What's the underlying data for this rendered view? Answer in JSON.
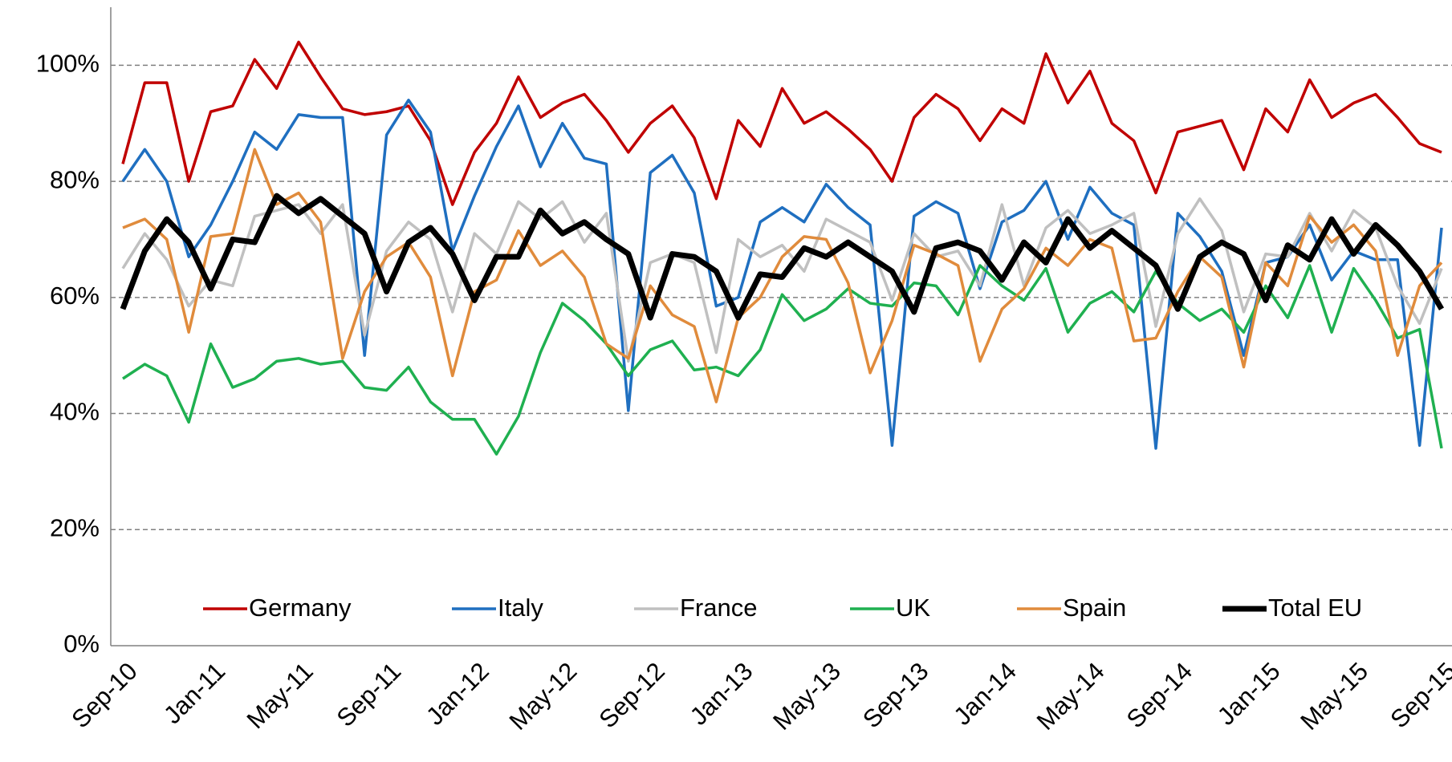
{
  "chart_data": {
    "type": "line",
    "categories": [
      "Sep-10",
      null,
      null,
      null,
      "Jan-11",
      null,
      null,
      null,
      "May-11",
      null,
      null,
      null,
      "Sep-11",
      null,
      null,
      null,
      "Jan-12",
      null,
      null,
      null,
      "May-12",
      null,
      null,
      null,
      "Sep-12",
      null,
      null,
      null,
      "Jan-13",
      null,
      null,
      null,
      "May-13",
      null,
      null,
      null,
      "Sep-13",
      null,
      null,
      null,
      "Jan-14",
      null,
      null,
      null,
      "May-14",
      null,
      null,
      null,
      "Sep-14",
      null,
      null,
      null,
      "Jan-15",
      null,
      null,
      null,
      "May-15",
      null,
      null,
      null,
      "Sep-15"
    ],
    "series": [
      {
        "name": "Germany",
        "color": "#c00000",
        "width": 3.5,
        "values": [
          83,
          97,
          97,
          80,
          92,
          93,
          101,
          96,
          104,
          98,
          92.5,
          91.5,
          92,
          93,
          87,
          76,
          85,
          90,
          98,
          91,
          93.5,
          95,
          90.5,
          85,
          90,
          93,
          87.5,
          77,
          90.5,
          86,
          96,
          90,
          92,
          89,
          85.5,
          80,
          91,
          95,
          92.5,
          87,
          92.5,
          90,
          102,
          93.5,
          99,
          90,
          87,
          78,
          88.5,
          89.5,
          90.5,
          82,
          92.5,
          88.5,
          97.5,
          91,
          93.5,
          95,
          91,
          86.5,
          85
        ]
      },
      {
        "name": "Italy",
        "color": "#1f6fc0",
        "width": 3.5,
        "values": [
          80,
          85.5,
          80,
          67,
          72.5,
          80,
          88.5,
          85.5,
          91.5,
          91,
          91,
          50,
          88,
          94,
          88.5,
          68,
          77.5,
          86,
          93,
          82.5,
          90,
          84,
          83,
          40.5,
          81.5,
          84.5,
          78,
          58.5,
          60,
          73,
          75.5,
          73,
          79.5,
          75.5,
          72.5,
          34.5,
          74,
          76.5,
          74.5,
          61.5,
          73,
          75,
          80,
          70,
          79,
          74.5,
          72.5,
          34,
          74.5,
          70.5,
          64.5,
          50,
          66,
          67,
          72.5,
          63,
          68,
          66.5,
          66.5,
          34.5,
          72
        ]
      },
      {
        "name": "France",
        "color": "#c0c0c0",
        "width": 3.5,
        "values": [
          65,
          71,
          66.5,
          58.5,
          63,
          62,
          74,
          75,
          76,
          71,
          76,
          53.5,
          68,
          73,
          70,
          57.5,
          71,
          67.5,
          76.5,
          73.5,
          76.5,
          69.5,
          74.5,
          49,
          66,
          67.5,
          66,
          50.5,
          70,
          67,
          69,
          64.5,
          73.5,
          71.5,
          69.5,
          59.5,
          71,
          67,
          68,
          62,
          76,
          62,
          72,
          75,
          71,
          72.5,
          74.5,
          55,
          71,
          77,
          71.5,
          57.5,
          67.5,
          67,
          74.5,
          68,
          75,
          72,
          62,
          55.5,
          65
        ]
      },
      {
        "name": "UK",
        "color": "#1fb050",
        "width": 3.5,
        "values": [
          46,
          48.5,
          46.5,
          38.5,
          52,
          44.5,
          46,
          49,
          49.5,
          48.5,
          49,
          44.5,
          44,
          48,
          42,
          39,
          39,
          33,
          39.5,
          50.5,
          59,
          56,
          52,
          46.5,
          51,
          52.5,
          47.5,
          48,
          46.5,
          51,
          60.5,
          56,
          58,
          61.5,
          59,
          58.5,
          62.5,
          62,
          57,
          65.5,
          62,
          59.5,
          65,
          54,
          59,
          61,
          57.5,
          64.5,
          59,
          56,
          58,
          54,
          62,
          56.5,
          65.5,
          54,
          65,
          59.5,
          53,
          54.5,
          34
        ]
      },
      {
        "name": "Spain",
        "color": "#e08b3c",
        "width": 3.5,
        "values": [
          72,
          73.5,
          70,
          54,
          70.5,
          71,
          85.5,
          76,
          78,
          73,
          49.5,
          61,
          67,
          69.5,
          63.5,
          46.5,
          61,
          63,
          71.5,
          65.5,
          68,
          63.5,
          52,
          49.5,
          62,
          57,
          55,
          42,
          56.5,
          60,
          67,
          70.5,
          70,
          62.5,
          47,
          56,
          69,
          67.5,
          65.5,
          49,
          58,
          61.5,
          68.5,
          65.5,
          70,
          68.5,
          52.5,
          53,
          61,
          67,
          63.5,
          48,
          66,
          62,
          74,
          69.5,
          72.5,
          68,
          50,
          62,
          66
        ]
      },
      {
        "name": "Total EU",
        "color": "#000000",
        "width": 7,
        "values": [
          58,
          68,
          73.5,
          69.5,
          61.5,
          70,
          69.5,
          77.5,
          74.5,
          77,
          74,
          71,
          61,
          69.5,
          72,
          67.5,
          59.5,
          67,
          67,
          75,
          71,
          73,
          70,
          67.5,
          56.5,
          67.5,
          67,
          64.5,
          56.5,
          64,
          63.5,
          68.5,
          67,
          69.5,
          67,
          64.5,
          57.5,
          68.5,
          69.5,
          68,
          63,
          69.5,
          66,
          73.5,
          68.5,
          71.5,
          68.5,
          65.5,
          58,
          67,
          69.5,
          67.5,
          59.5,
          69,
          66.5,
          73.5,
          67.5,
          72.5,
          69,
          64.5,
          58
        ]
      }
    ],
    "ylim": [
      0,
      110
    ],
    "yticks": [
      {
        "value": 0,
        "label": "0%"
      },
      {
        "value": 20,
        "label": "20%"
      },
      {
        "value": 40,
        "label": "40%"
      },
      {
        "value": 60,
        "label": "60%"
      },
      {
        "value": 80,
        "label": "80%"
      },
      {
        "value": 100,
        "label": "100%"
      }
    ],
    "grid": true,
    "legend": "bottom"
  }
}
